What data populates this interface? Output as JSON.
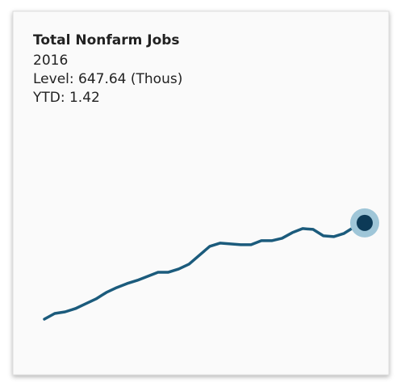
{
  "chart_data": {
    "type": "line",
    "title": "Total Nonfarm Jobs",
    "info": [
      "2016",
      "Level: 647.64 (Thous)",
      "YTD: 1.42"
    ],
    "values": [
      600.04,
      602.84,
      603.64,
      605.24,
      607.64,
      610.04,
      613.24,
      615.64,
      617.64,
      619.24,
      621.24,
      623.24,
      623.24,
      624.84,
      627.24,
      631.64,
      636.04,
      637.64,
      637.24,
      636.84,
      636.84,
      638.84,
      638.84,
      640.04,
      642.84,
      644.84,
      644.44,
      641.24,
      640.84,
      642.44,
      645.64,
      647.64
    ],
    "color": "#1b5b7c",
    "marker_color": "#0c3a57",
    "halo_color": "#9fc6d8",
    "ylim": [
      595,
      650
    ]
  }
}
